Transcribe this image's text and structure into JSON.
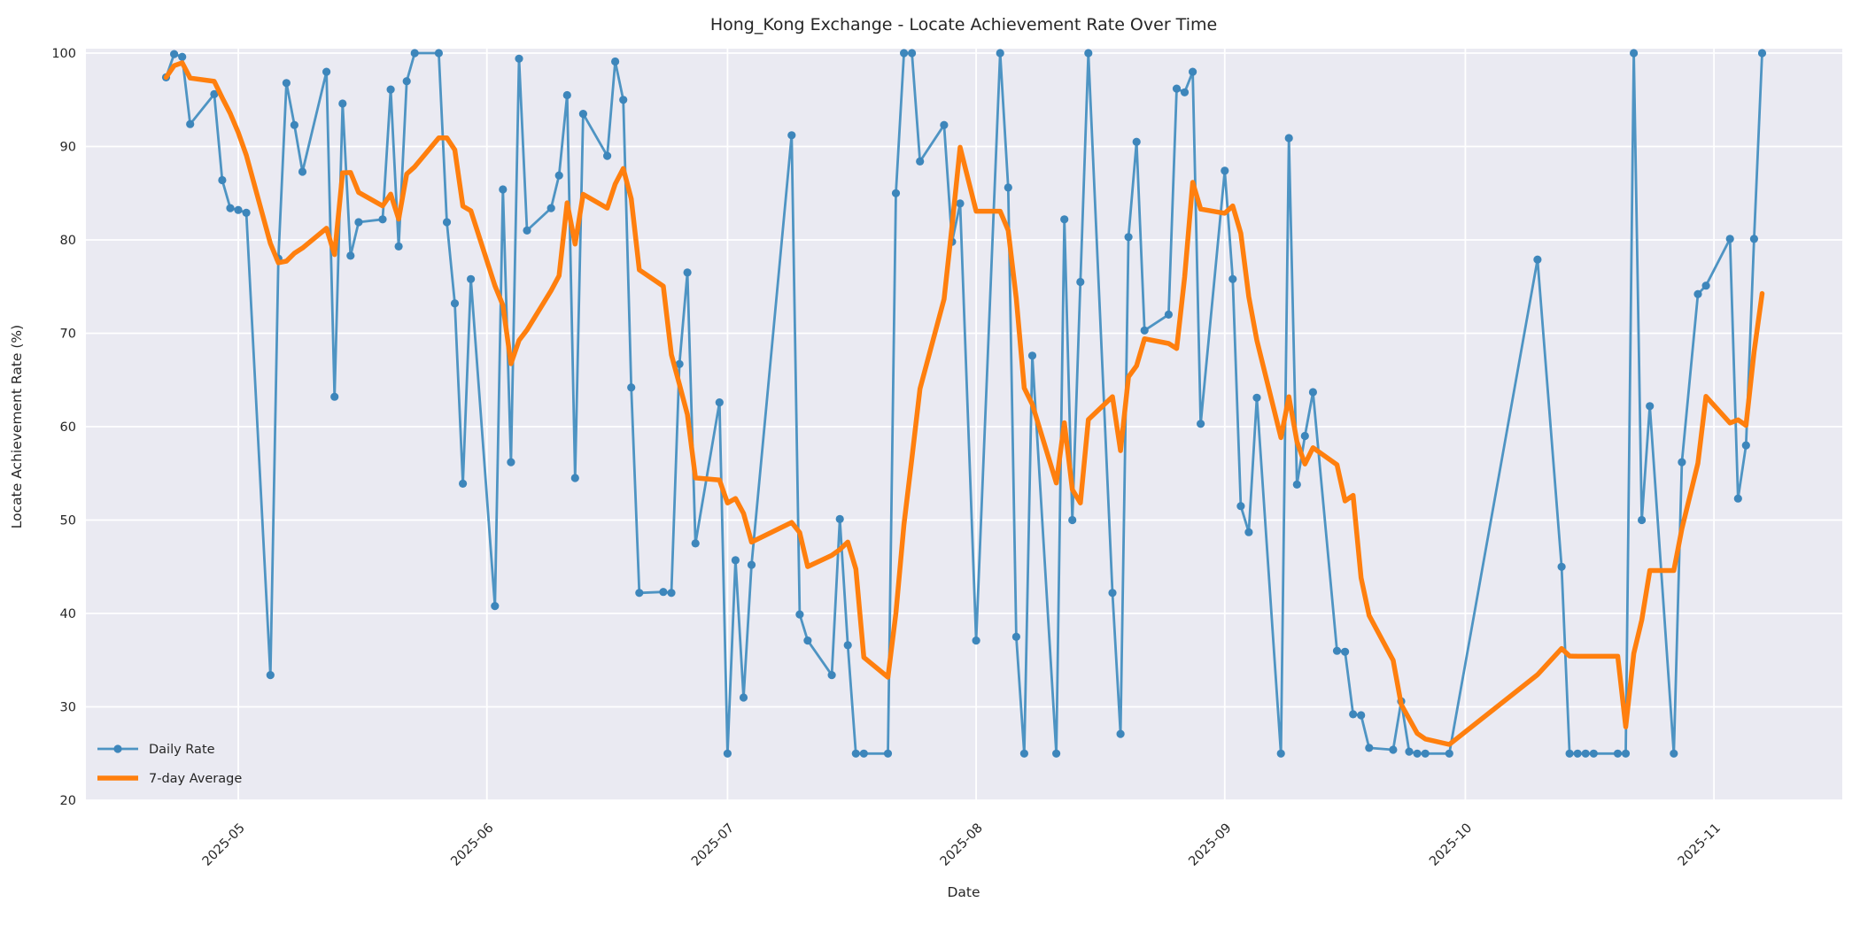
{
  "title": "Hong_Kong Exchange - Locate Achievement Rate Over Time",
  "axes": {
    "xlabel": "Date",
    "ylabel": "Locate Achievement Rate (%)",
    "ylim": [
      20,
      100
    ],
    "yticks": [
      20,
      30,
      40,
      50,
      60,
      70,
      80,
      90,
      100
    ],
    "xtick_labels": [
      "2025-05",
      "2025-06",
      "2025-07",
      "2025-08",
      "2025-09",
      "2025-10",
      "2025-11"
    ],
    "xtick_dates": [
      "2025-05-01",
      "2025-06-01",
      "2025-07-01",
      "2025-08-01",
      "2025-09-01",
      "2025-10-01",
      "2025-11-01"
    ],
    "xlim_dates": [
      "2025-04-12",
      "2025-11-17"
    ],
    "grid": true,
    "plot_bg": "#eaeaf2",
    "grid_color": "#ffffff",
    "text_color": "#262626"
  },
  "legend": {
    "position": "lower left",
    "items": [
      {
        "label": "Daily Rate",
        "color": "#4e94c3",
        "style": "line-marker"
      },
      {
        "label": "7-day Average",
        "color": "#ff7f0e",
        "style": "thick-line"
      }
    ]
  },
  "chart_data": {
    "type": "line",
    "title": "Hong_Kong Exchange - Locate Achievement Rate Over Time",
    "xlabel": "Date",
    "ylabel": "Locate Achievement Rate (%)",
    "ylim": [
      20,
      100
    ],
    "legend_position": "lower left",
    "series": [
      {
        "name": "Daily Rate",
        "color": "#4e94c3",
        "marker": "o",
        "x": [
          "2025-04-22",
          "2025-04-23",
          "2025-04-24",
          "2025-04-25",
          "2025-04-28",
          "2025-04-29",
          "2025-04-30",
          "2025-05-01",
          "2025-05-02",
          "2025-05-05",
          "2025-05-06",
          "2025-05-07",
          "2025-05-08",
          "2025-05-09",
          "2025-05-12",
          "2025-05-13",
          "2025-05-14",
          "2025-05-15",
          "2025-05-16",
          "2025-05-19",
          "2025-05-20",
          "2025-05-21",
          "2025-05-22",
          "2025-05-23",
          "2025-05-26",
          "2025-05-27",
          "2025-05-28",
          "2025-05-29",
          "2025-05-30",
          "2025-06-02",
          "2025-06-03",
          "2025-06-04",
          "2025-06-05",
          "2025-06-06",
          "2025-06-09",
          "2025-06-10",
          "2025-06-11",
          "2025-06-12",
          "2025-06-13",
          "2025-06-16",
          "2025-06-17",
          "2025-06-18",
          "2025-06-19",
          "2025-06-20",
          "2025-06-23",
          "2025-06-24",
          "2025-06-25",
          "2025-06-26",
          "2025-06-27",
          "2025-06-30",
          "2025-07-01",
          "2025-07-02",
          "2025-07-03",
          "2025-07-04",
          "2025-07-09",
          "2025-07-10",
          "2025-07-11",
          "2025-07-14",
          "2025-07-15",
          "2025-07-16",
          "2025-07-17",
          "2025-07-18",
          "2025-07-21",
          "2025-07-22",
          "2025-07-23",
          "2025-07-24",
          "2025-07-25",
          "2025-07-28",
          "2025-07-29",
          "2025-07-30",
          "2025-08-01",
          "2025-08-04",
          "2025-08-05",
          "2025-08-06",
          "2025-08-07",
          "2025-08-08",
          "2025-08-11",
          "2025-08-12",
          "2025-08-13",
          "2025-08-14",
          "2025-08-15",
          "2025-08-18",
          "2025-08-19",
          "2025-08-20",
          "2025-08-21",
          "2025-08-22",
          "2025-08-25",
          "2025-08-26",
          "2025-08-27",
          "2025-08-28",
          "2025-08-29",
          "2025-09-01",
          "2025-09-02",
          "2025-09-03",
          "2025-09-04",
          "2025-09-05",
          "2025-09-08",
          "2025-09-09",
          "2025-09-10",
          "2025-09-11",
          "2025-09-12",
          "2025-09-15",
          "2025-09-16",
          "2025-09-17",
          "2025-09-18",
          "2025-09-19",
          "2025-09-22",
          "2025-09-23",
          "2025-09-24",
          "2025-09-25",
          "2025-09-26",
          "2025-09-29",
          "2025-10-10",
          "2025-10-13",
          "2025-10-14",
          "2025-10-15",
          "2025-10-16",
          "2025-10-17",
          "2025-10-20",
          "2025-10-21",
          "2025-10-22",
          "2025-10-23",
          "2025-10-24",
          "2025-10-27",
          "2025-10-28",
          "2025-10-30",
          "2025-10-31",
          "2025-11-03",
          "2025-11-04",
          "2025-11-05",
          "2025-11-06",
          "2025-11-07"
        ],
        "y": [
          97.4,
          99.9,
          99.6,
          92.4,
          95.6,
          86.4,
          83.4,
          83.2,
          82.9,
          33.4,
          78.0,
          96.8,
          92.3,
          87.3,
          98.0,
          63.2,
          94.6,
          78.3,
          81.9,
          82.2,
          96.1,
          79.3,
          97.0,
          100.0,
          100.0,
          81.9,
          73.2,
          53.9,
          75.8,
          40.8,
          85.4,
          56.2,
          99.4,
          81.0,
          83.4,
          86.9,
          95.5,
          54.5,
          93.5,
          89.0,
          99.1,
          95.0,
          64.2,
          42.2,
          42.3,
          42.2,
          66.7,
          76.5,
          47.5,
          62.6,
          25.0,
          45.7,
          31.0,
          45.2,
          91.2,
          39.9,
          37.1,
          33.4,
          50.1,
          36.6,
          25.0,
          25.0,
          25.0,
          85.0,
          100.0,
          100.0,
          88.4,
          92.3,
          79.8,
          83.9,
          37.1,
          100.0,
          85.6,
          37.5,
          25.0,
          67.6,
          25.0,
          82.2,
          50.0,
          75.5,
          100.0,
          42.2,
          27.1,
          80.3,
          90.5,
          70.3,
          72.0,
          96.2,
          95.8,
          98.0,
          60.3,
          87.4,
          75.8,
          51.5,
          48.7,
          63.1,
          25.0,
          90.9,
          53.8,
          59.0,
          63.7,
          36.0,
          35.9,
          29.2,
          29.1,
          25.6,
          25.4,
          30.6,
          25.2,
          25.0,
          25.0,
          25.0,
          77.9,
          45.0,
          25.0,
          25.0,
          25.0,
          25.0,
          25.0,
          25.0,
          100.0,
          50.0,
          62.2,
          25.0,
          56.2,
          74.2,
          75.1,
          80.1,
          52.3,
          58.0,
          80.1,
          100.0
        ]
      },
      {
        "name": "7-day Average",
        "color": "#ff7f0e",
        "derivation": "rolling mean of Daily Rate, window 7 points, min_periods 1"
      }
    ]
  }
}
